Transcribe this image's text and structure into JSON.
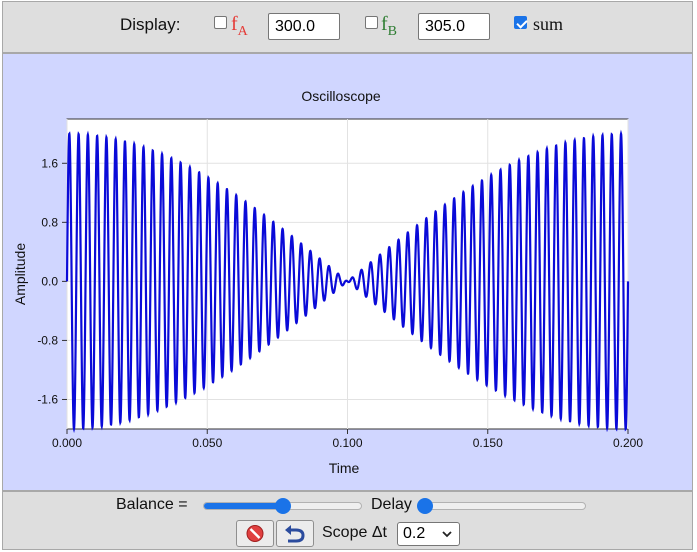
{
  "top_bar": {
    "display_label": "Display:",
    "fa": {
      "checked": false,
      "symbol": "f",
      "subscript": "A",
      "color": "#e53935",
      "value": "300.0"
    },
    "fb": {
      "checked": false,
      "symbol": "f",
      "subscript": "B",
      "color": "#2e7d32",
      "value": "305.0"
    },
    "sum": {
      "checked": true,
      "label": "sum"
    }
  },
  "chart_data": {
    "type": "line",
    "title": "Oscilloscope",
    "xlabel": "Time",
    "ylabel": "Amplitude",
    "xlim": [
      0.0,
      0.2
    ],
    "ylim": [
      -2.0,
      2.2
    ],
    "x_ticks": [
      "0.000",
      "0.050",
      "0.100",
      "0.150",
      "0.200"
    ],
    "y_ticks": [
      "1.6",
      "0.8",
      "0.0",
      "-0.8",
      "-1.6"
    ],
    "grid": true,
    "series": [
      {
        "color": "#0a0ad8",
        "formula": "sin(2*pi*300*t) + sin(2*pi*305*t)",
        "fa": 300.0,
        "fb": 305.0,
        "amplitude_each": 1.0
      }
    ],
    "background": "#d0d6ff"
  },
  "bottom_bar": {
    "balance_label": "Balance =",
    "balance_value": 0.5,
    "delay_label": "Delay",
    "delay_value": 0.0,
    "scope_label": "Scope Δt",
    "scope_selected": "0.2",
    "reset_icon": "stop-circle-icon",
    "undo_icon": "undo-arrow-icon"
  }
}
